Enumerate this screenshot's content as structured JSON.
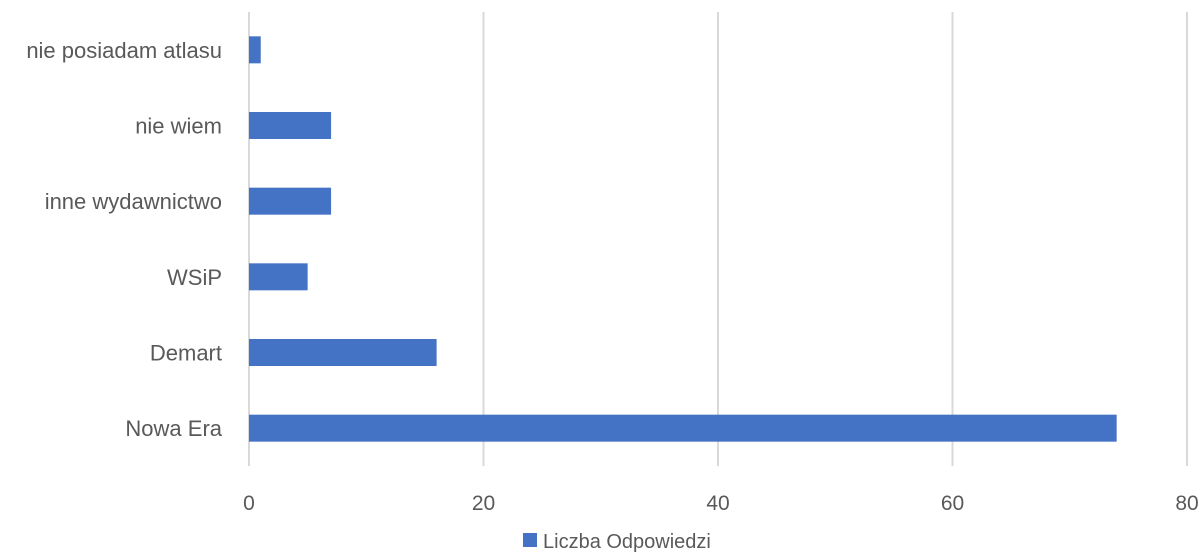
{
  "chart_data": {
    "type": "bar",
    "orientation": "horizontal",
    "categories": [
      "Nowa Era",
      "Demart",
      "WSiP",
      "inne wydawnictwo",
      "nie wiem",
      "nie posiadam atlasu"
    ],
    "series": [
      {
        "name": "Liczba Odpowiedzi",
        "values": [
          74,
          16,
          5,
          7,
          7,
          1
        ],
        "color": "#4472c4"
      }
    ],
    "xlim": [
      0,
      80
    ],
    "x_ticks": [
      0,
      20,
      40,
      60,
      80
    ],
    "grid": "vertical",
    "legend_position": "bottom"
  }
}
